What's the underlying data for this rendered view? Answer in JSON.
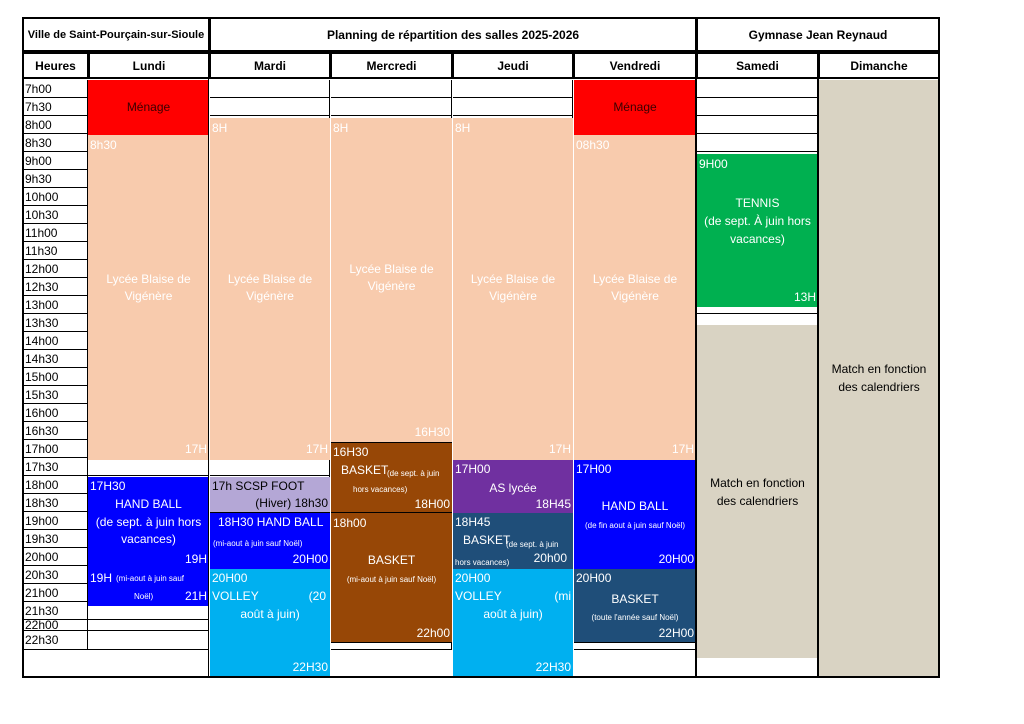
{
  "header": {
    "city": "Ville de Saint-Pourçain-sur-Sioule",
    "title": "Planning de répartition des salles 2025-2026",
    "venue": "Gymnase Jean Reynaud"
  },
  "columns": [
    "Heures",
    "Lundi",
    "Mardi",
    "Mercredi",
    "Jeudi",
    "Vendredi",
    "Samedi",
    "Dimanche"
  ],
  "hours": [
    "7h00",
    "7h30",
    "8h00",
    "8h30",
    "9h00",
    "9h30",
    "10h00",
    "10h30",
    "11h00",
    "11h30",
    "12h00",
    "12h30",
    "13h00",
    "13h30",
    "14h00",
    "14h30",
    "15h00",
    "15h30",
    "16h00",
    "16h30",
    "17h00",
    "17h30",
    "18h00",
    "18h30",
    "19h00",
    "19h30",
    "20h00",
    "20h30",
    "21h00",
    "21h30",
    "22h00",
    "22h30"
  ],
  "colors": {
    "menage": "#ff0000",
    "lycee": "#f8cbad",
    "tennis": "#00b050",
    "match": "#d9d3c3",
    "hand": "#0000ff",
    "foot": "#b4a7d6",
    "basket_brown": "#974706",
    "as_lycee": "#7030a0",
    "basket_navy": "#1f4e79",
    "volley": "#00b0f0"
  },
  "blocks": {
    "menage_lundi": "Ménage",
    "menage_vendredi": "Ménage",
    "lycee_lundi": {
      "start": "8h30",
      "l1": "Lycée Blaise de",
      "l2": "Vigénère",
      "end": "17H"
    },
    "lycee_mardi": {
      "start": "8H",
      "l1": "Lycée Blaise de",
      "l2": "Vigénère",
      "end": "17H"
    },
    "lycee_mercredi": {
      "start": "8H",
      "l1": "Lycée Blaise de",
      "l2": "Vigénère",
      "end": "16H30"
    },
    "lycee_jeudi": {
      "start": "8H",
      "l1": "Lycée Blaise de",
      "l2": "Vigénère",
      "end": "17H"
    },
    "lycee_vendredi": {
      "start": "08h30",
      "l1": "Lycée Blaise de",
      "l2": "Vigénère",
      "end": "17H"
    },
    "tennis": {
      "start": "9H00",
      "l1": "TENNIS",
      "l2": "(de sept. À juin hors",
      "l3": "vacances)",
      "end": "13H"
    },
    "match_samedi": {
      "l1": "Match en fonction",
      "l2": "des calendriers"
    },
    "match_dimanche": {
      "l1": "Match en fonction",
      "l2": "des calendriers"
    },
    "hand_lundi": {
      "start": "17H30",
      "l1": "HAND BALL",
      "l2": "(de sept. à juin hors",
      "l3": "vacances)",
      "end": "19H"
    },
    "hand_lundi2": {
      "start": "19H",
      "note": "(mi-aout à juin sauf",
      "note2": "Noël)",
      "end": "21H"
    },
    "foot_mardi": {
      "l1": "17h SCSP FOOT",
      "l2": "(Hiver) 18h30"
    },
    "hand_mardi": {
      "l1": "18H30 HAND BALL",
      "note": "(mi-aout à juin sauf Noël)",
      "end": "20H00"
    },
    "volley_mardi": {
      "start": "20H00",
      "l1": "VOLLEY",
      "l1b": "(20",
      "l2": "août à juin)",
      "end": "22H30"
    },
    "basket_mercredi1": {
      "start": "16H30",
      "l1": "BASKET",
      "note": "(de sept. à juin",
      "note2": "hors vacances)",
      "end": "18H00"
    },
    "basket_mercredi2": {
      "start": "18h00",
      "l1": "BASKET",
      "note": "(mi-aout à juin sauf Noël)",
      "end": "22h00"
    },
    "as_jeudi": {
      "start": "17H00",
      "l1": "AS lycée",
      "end": "18H45"
    },
    "basket_jeudi": {
      "start": "18H45",
      "l1": "BASKET",
      "note": "(de sept. à juin",
      "note2": "hors vacances)",
      "end": "20h00"
    },
    "volley_jeudi": {
      "start": "20H00",
      "l1": "VOLLEY",
      "l1b": "(mi",
      "l2": "août à juin)",
      "end": "22H30"
    },
    "hand_vendredi": {
      "start": "17H00",
      "l1": "HAND BALL",
      "note": "(de fin aout à juin sauf Noël)",
      "end": "20H00"
    },
    "basket_vendredi": {
      "start": "20H00",
      "l1": "BASKET",
      "note": "(toute l'année sauf Noël)",
      "end": "22H00"
    }
  }
}
